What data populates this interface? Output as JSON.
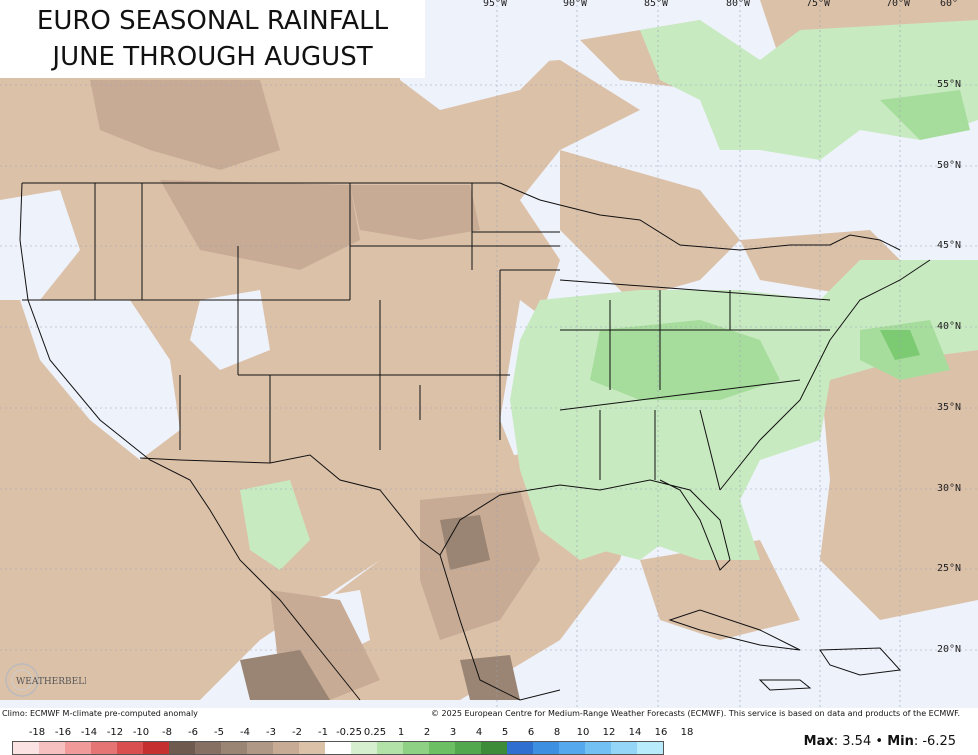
{
  "title": {
    "line1": "EURO SEASONAL RAINFALL",
    "line2": "JUNE THROUGH AUGUST"
  },
  "longitude_labels": [
    "95°W",
    "90°W",
    "85°W",
    "80°W",
    "75°W",
    "70°W",
    "60°"
  ],
  "latitude_labels": [
    "55°N",
    "50°N",
    "45°N",
    "40°N",
    "35°N",
    "30°N",
    "25°N",
    "20°N"
  ],
  "footer": {
    "left": "Climo: ECMWF M-climate pre-computed anomaly",
    "right": "© 2025 European Centre for Medium-Range Weather Forecasts (ECMWF). This service is based on data and products of the ECMWF."
  },
  "legend": {
    "ticks": [
      "-18",
      "-16",
      "-14",
      "-12",
      "-10",
      "-8",
      "-6",
      "-5",
      "-4",
      "-3",
      "-2",
      "-1",
      "-0.25",
      "0.25",
      "1",
      "2",
      "3",
      "4",
      "5",
      "6",
      "8",
      "10",
      "12",
      "14",
      "16",
      "18"
    ],
    "colors": [
      "#fbe3e3",
      "#f6c0c0",
      "#f09a9a",
      "#e57474",
      "#d94f4f",
      "#c62f2f",
      "#6e5a4e",
      "#857063",
      "#9a8473",
      "#b09886",
      "#c7ab95",
      "#dcc1a9",
      "#ffffff",
      "#d6f0cf",
      "#b3e2a9",
      "#8fd184",
      "#6cc063",
      "#52a84c",
      "#3d8c3a",
      "#2f6fd0",
      "#3d8fe2",
      "#55a8ee",
      "#72c0f4",
      "#93d6f8",
      "#b8ebfb"
    ]
  },
  "stats": {
    "max_label": "Max",
    "max_value": "3.54",
    "sep": "•",
    "min_label": "Min",
    "min_value": "-6.25"
  },
  "logo_text": "WEATHERBELL",
  "colors": {
    "dry_light": "#dcc1a9",
    "dry_mid": "#c7ab95",
    "dry_dark": "#9a8473",
    "neutral": "#eef2fb",
    "wet_light": "#c8eac0",
    "wet_mid": "#a6dc9c",
    "wet_dark": "#7ccb73",
    "border": "#111111"
  }
}
